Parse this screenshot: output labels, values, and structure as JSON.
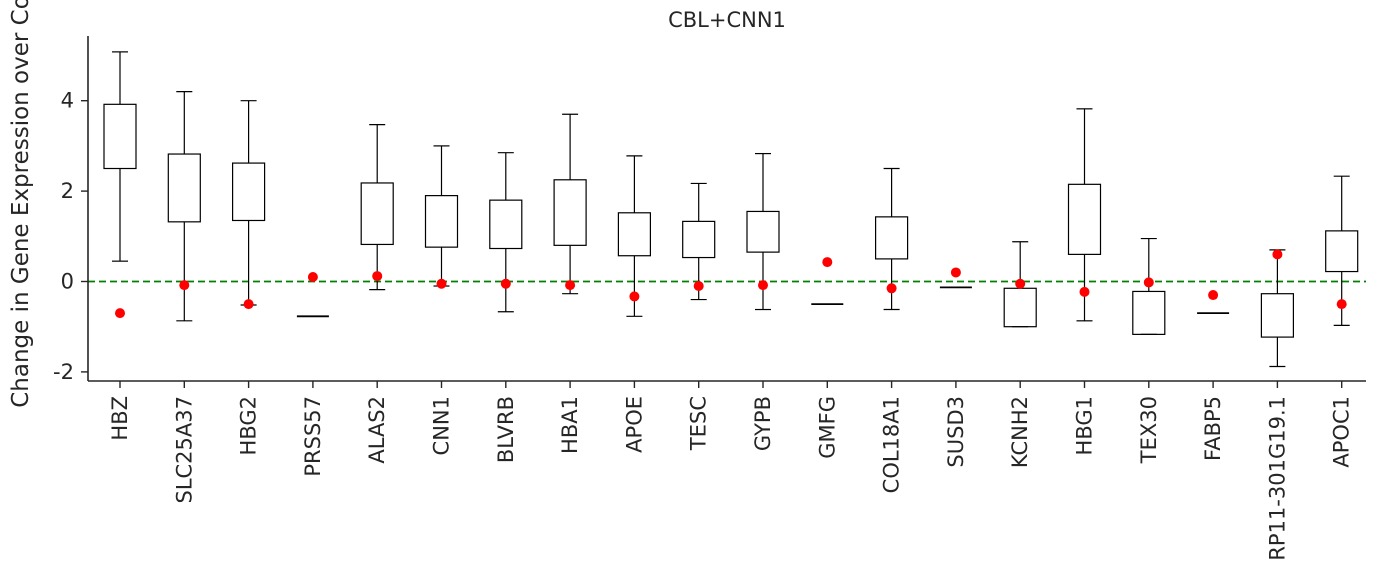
{
  "chart_data": {
    "type": "box",
    "title": "CBL+CNN1",
    "ylabel": "Change in Gene Expression over Control",
    "xlabel": "",
    "ylim": [
      -2.25,
      5.45
    ],
    "yticks": [
      -2,
      0,
      2,
      4
    ],
    "reference_line": {
      "y": 0,
      "color": "#008000",
      "style": "dashed"
    },
    "marker_color": "#ff0000",
    "categories": [
      "HBZ",
      "SLC25A37",
      "HBG2",
      "PRSS57",
      "ALAS2",
      "CNN1",
      "BLVRB",
      "HBA1",
      "APOE",
      "TESC",
      "GYPB",
      "GMFG",
      "COL18A1",
      "SUSD3",
      "KCNH2",
      "HBG1",
      "TEX30",
      "FABP5",
      "RP11-301G19.1",
      "APOC1"
    ],
    "boxes": [
      {
        "whislo": 0.45,
        "q1": 2.5,
        "q3": 3.92,
        "whishi": 5.08
      },
      {
        "whislo": -0.87,
        "q1": 1.32,
        "q3": 2.82,
        "whishi": 4.2
      },
      {
        "whislo": -0.52,
        "q1": 1.35,
        "q3": 2.62,
        "whishi": 4.0
      },
      {
        "whislo": -0.77,
        "q1": -0.77,
        "q3": -0.77,
        "whishi": -0.77
      },
      {
        "whislo": -0.18,
        "q1": 0.82,
        "q3": 2.18,
        "whishi": 3.47
      },
      {
        "whislo": -0.1,
        "q1": 0.76,
        "q3": 1.9,
        "whishi": 3.0
      },
      {
        "whislo": -0.67,
        "q1": 0.73,
        "q3": 1.8,
        "whishi": 2.85
      },
      {
        "whislo": -0.27,
        "q1": 0.8,
        "q3": 2.25,
        "whishi": 3.7
      },
      {
        "whislo": -0.77,
        "q1": 0.57,
        "q3": 1.52,
        "whishi": 2.78
      },
      {
        "whislo": -0.4,
        "q1": 0.53,
        "q3": 1.33,
        "whishi": 2.17
      },
      {
        "whislo": -0.62,
        "q1": 0.65,
        "q3": 1.55,
        "whishi": 2.83
      },
      {
        "whislo": -0.5,
        "q1": -0.5,
        "q3": -0.5,
        "whishi": -0.5
      },
      {
        "whislo": -0.62,
        "q1": 0.5,
        "q3": 1.43,
        "whishi": 2.5
      },
      {
        "whislo": -0.13,
        "q1": -0.13,
        "q3": -0.13,
        "whishi": -0.13
      },
      {
        "whislo": -1.0,
        "q1": -1.0,
        "q3": -0.15,
        "whishi": 0.88
      },
      {
        "whislo": -0.87,
        "q1": 0.6,
        "q3": 2.15,
        "whishi": 3.82
      },
      {
        "whislo": -1.17,
        "q1": -1.17,
        "q3": -0.22,
        "whishi": 0.95
      },
      {
        "whislo": -0.7,
        "q1": -0.7,
        "q3": -0.7,
        "whishi": -0.7
      },
      {
        "whislo": -1.88,
        "q1": -1.23,
        "q3": -0.27,
        "whishi": 0.7
      },
      {
        "whislo": -0.97,
        "q1": 0.22,
        "q3": 1.12,
        "whishi": 2.33
      }
    ],
    "points": [
      -0.7,
      -0.08,
      -0.5,
      0.1,
      0.12,
      -0.05,
      -0.05,
      -0.08,
      -0.33,
      -0.1,
      -0.08,
      0.43,
      -0.15,
      0.2,
      -0.05,
      -0.23,
      -0.02,
      -0.3,
      0.6,
      -0.5
    ]
  }
}
